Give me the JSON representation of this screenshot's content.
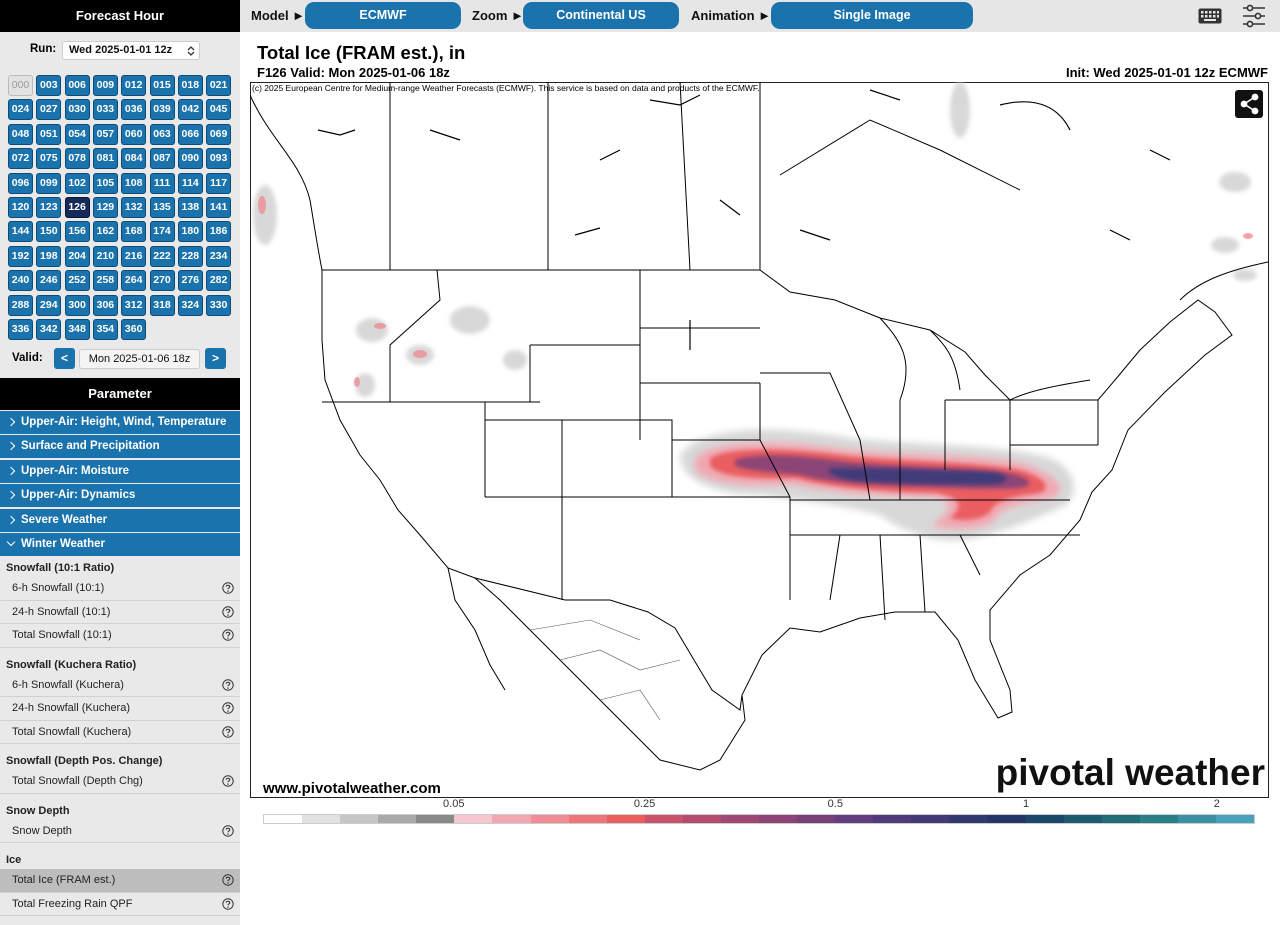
{
  "top_bar": {
    "model_label": "Model ►",
    "model": "ECMWF",
    "zoom_label": "Zoom ►",
    "zoom": "Continental US",
    "animation_label": "Animation ►",
    "animation": "Single Image"
  },
  "sidebar": {
    "forecast_hour_header": "Forecast Hour",
    "run_label": "Run:",
    "run": "Wed 2025-01-01 12z",
    "hours": [
      "000",
      "003",
      "006",
      "009",
      "012",
      "015",
      "018",
      "021",
      "024",
      "027",
      "030",
      "033",
      "036",
      "039",
      "042",
      "045",
      "048",
      "051",
      "054",
      "057",
      "060",
      "063",
      "066",
      "069",
      "072",
      "075",
      "078",
      "081",
      "084",
      "087",
      "090",
      "093",
      "096",
      "099",
      "102",
      "105",
      "108",
      "111",
      "114",
      "117",
      "120",
      "123",
      "126",
      "129",
      "132",
      "135",
      "138",
      "141",
      "144",
      "150",
      "156",
      "162",
      "168",
      "174",
      "180",
      "186",
      "192",
      "198",
      "204",
      "210",
      "216",
      "222",
      "228",
      "234",
      "240",
      "246",
      "252",
      "258",
      "264",
      "270",
      "276",
      "282",
      "288",
      "294",
      "300",
      "306",
      "312",
      "318",
      "324",
      "330",
      "336",
      "342",
      "348",
      "354",
      "360"
    ],
    "selected_hour_index": 42,
    "disabled_hour_index": 0,
    "valid_label": "Valid:",
    "valid_prev": "<",
    "valid": "Mon 2025-01-06 18z",
    "valid_next": ">",
    "parameter_header": "Parameter",
    "categories": [
      "Upper-Air: Height, Wind, Temperature",
      "Surface and Precipitation",
      "Upper-Air: Moisture",
      "Upper-Air: Dynamics",
      "Severe Weather",
      "Winter Weather"
    ],
    "expanded_category_index": 5,
    "groups": [
      {
        "title": "Snowfall (10:1 Ratio)",
        "items": [
          "6-h Snowfall (10:1)",
          "24-h Snowfall (10:1)",
          "Total Snowfall (10:1)"
        ]
      },
      {
        "title": "Snowfall (Kuchera Ratio)",
        "items": [
          "6-h Snowfall (Kuchera)",
          "24-h Snowfall (Kuchera)",
          "Total Snowfall (Kuchera)"
        ]
      },
      {
        "title": "Snowfall (Depth Pos. Change)",
        "items": [
          "Total Snowfall (Depth Chg)"
        ]
      },
      {
        "title": "Snow Depth",
        "items": [
          "Snow Depth"
        ]
      },
      {
        "title": "Ice",
        "items": [
          "Total Ice (FRAM est.)",
          "Total Freezing Rain QPF"
        ]
      }
    ],
    "selected_item": [
      4,
      0
    ]
  },
  "map": {
    "title": "Total Ice (FRAM est.), in",
    "subtitle": "F126 Valid: Mon 2025-01-06 18z",
    "init": "Init: Wed 2025-01-01 12z ECMWF",
    "copyright": "(c) 2025 European Centre for Medium-range Weather Forecasts (ECMWF). This service is based on data and products of the ECMWF.",
    "website": "www.pivotalweather.com",
    "logo": "pivotal weather",
    "colorbar": {
      "colors": [
        "#ffffff",
        "#e1e1e1",
        "#c6c6c6",
        "#a9a9a9",
        "#8a8a8a",
        "#f5c8d0",
        "#f1a8b2",
        "#ee8d95",
        "#ec767a",
        "#ea5d60",
        "#c9526d",
        "#b44c70",
        "#a04873",
        "#8c4476",
        "#774079",
        "#613d7e",
        "#503b7d",
        "#413a79",
        "#313872",
        "#24356b",
        "#1a4868",
        "#1d5a70",
        "#226c79",
        "#2a7e87",
        "#3a90a0",
        "#4aa2ba"
      ],
      "labels": [
        "0.05",
        "0.25",
        "0.5",
        "1",
        "2"
      ]
    }
  }
}
